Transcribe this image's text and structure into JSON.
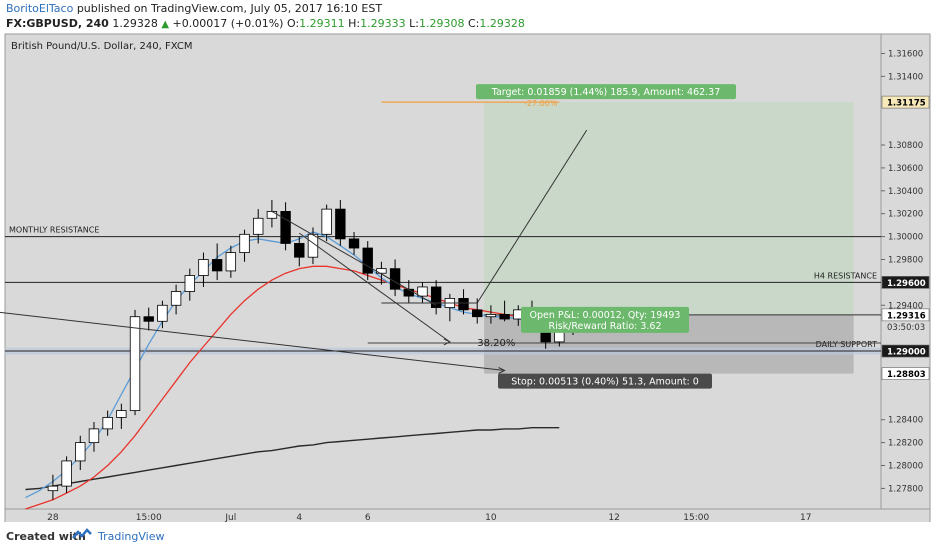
{
  "header": {
    "author": "BoritoElTaco",
    "published": "published on TradingView.com, July 05, 2017 16:10 EST",
    "symbol": "FX:GBPUSD, 240",
    "last": "1.29328",
    "change": "+0.00017 (+0.01%)",
    "o_label": "O:",
    "o_value": "1.29311",
    "h_label": "H:",
    "h_value": "1.29333",
    "l_label": "L:",
    "l_value": "1.29308",
    "c_label": "C:",
    "c_value": "1.29328"
  },
  "footer": {
    "created_with": "Created with",
    "brand": "TradingView"
  },
  "colors": {
    "background": "#d9d9d9",
    "candle_up": "#ffffff",
    "candle_down": "#000000",
    "ma_fast": "#5b9bd5",
    "ma_mid": "#e8342c",
    "ma_slow": "#2a2a2a",
    "target_zone": "#c9d8c9",
    "stop_zone": "#b8b8b8",
    "target_label_bg": "#6cb86c",
    "stop_label_bg": "#4a4a4a",
    "target_line": "#f0a040",
    "support_band": "#bcc8dc"
  },
  "chart_data": {
    "type": "candlestick",
    "title": "British Pound/U.S. Dollar, 240, FXCM",
    "ylim": [
      1.2762,
      1.3177
    ],
    "y_ticks": [
      "1.31600",
      "1.31400",
      "1.31175",
      "1.30800",
      "1.30600",
      "1.30400",
      "1.30200",
      "1.30000",
      "1.29800",
      "1.29600",
      "1.29400",
      "1.29316",
      "1.29000",
      "1.28803",
      "1.28400",
      "1.28200",
      "1.28000",
      "1.27800"
    ],
    "y_tick_values": [
      1.316,
      1.314,
      1.31175,
      1.308,
      1.306,
      1.304,
      1.302,
      1.3,
      1.298,
      1.296,
      1.294,
      1.29316,
      1.29,
      1.28803,
      1.284,
      1.282,
      1.28,
      1.278
    ],
    "price_flags": [
      {
        "value": 1.31175,
        "label": "1.31175",
        "style": "highlight"
      },
      {
        "value": 1.296,
        "label": "1.29600",
        "style": "dark"
      },
      {
        "value": 1.29316,
        "label": "1.29316",
        "style": "white"
      },
      {
        "value": 1.29,
        "label": "1.29000",
        "style": "dark"
      },
      {
        "value": 1.28803,
        "label": "1.28803",
        "style": "white"
      }
    ],
    "countdown": "03:50:03",
    "x_labels": [
      "28",
      "15:00",
      "Jul",
      "4",
      "6",
      "10",
      "12",
      "15:00",
      "17"
    ],
    "x_label_bars": [
      3,
      10,
      16,
      21,
      26,
      35,
      44,
      50,
      58
    ],
    "bar_count": 64,
    "candles": [
      [
        1.2778,
        1.2792,
        1.277,
        1.2782
      ],
      [
        1.2782,
        1.2808,
        1.2776,
        1.2804
      ],
      [
        1.2804,
        1.2826,
        1.2796,
        1.282
      ],
      [
        1.282,
        1.2838,
        1.2812,
        1.2832
      ],
      [
        1.2832,
        1.2848,
        1.2826,
        1.2842
      ],
      [
        1.2842,
        1.2854,
        1.2832,
        1.2848
      ],
      [
        1.2848,
        1.2936,
        1.2844,
        1.293
      ],
      [
        1.293,
        1.2938,
        1.2918,
        1.2926
      ],
      [
        1.2926,
        1.2944,
        1.292,
        1.294
      ],
      [
        1.294,
        1.2958,
        1.2932,
        1.2952
      ],
      [
        1.2952,
        1.2972,
        1.2944,
        1.2966
      ],
      [
        1.2966,
        1.2986,
        1.2956,
        1.298
      ],
      [
        1.298,
        1.2994,
        1.2962,
        1.297
      ],
      [
        1.297,
        1.2992,
        1.2964,
        1.2986
      ],
      [
        1.2986,
        1.3006,
        1.2978,
        1.3002
      ],
      [
        1.3002,
        1.3024,
        1.2994,
        1.3016
      ],
      [
        1.3016,
        1.3032,
        1.3008,
        1.3022
      ],
      [
        1.3022,
        1.303,
        1.2988,
        1.2994
      ],
      [
        1.2994,
        1.3,
        1.2974,
        1.2982
      ],
      [
        1.2982,
        1.3008,
        1.2976,
        1.3002
      ],
      [
        1.3002,
        1.3028,
        1.2996,
        1.3024
      ],
      [
        1.3024,
        1.3032,
        1.2992,
        1.2998
      ],
      [
        1.2998,
        1.3004,
        1.2984,
        1.299
      ],
      [
        1.299,
        1.2996,
        1.2962,
        1.2968
      ],
      [
        1.2968,
        1.2978,
        1.2958,
        1.2972
      ],
      [
        1.2972,
        1.298,
        1.2948,
        1.2954
      ],
      [
        1.2954,
        1.2962,
        1.2942,
        1.2948
      ],
      [
        1.2948,
        1.296,
        1.2942,
        1.2956
      ],
      [
        1.2956,
        1.2962,
        1.2932,
        1.2938
      ],
      [
        1.2938,
        1.295,
        1.2926,
        1.2946
      ],
      [
        1.2946,
        1.2954,
        1.2932,
        1.2936
      ],
      [
        1.2936,
        1.2946,
        1.2924,
        1.293
      ],
      [
        1.293,
        1.294,
        1.2924,
        1.2932
      ],
      [
        1.2932,
        1.2944,
        1.2926,
        1.2928
      ],
      [
        1.2928,
        1.294,
        1.2922,
        1.2936
      ],
      [
        1.2936,
        1.2944,
        1.2928,
        1.2932
      ],
      [
        1.2932,
        1.2938,
        1.2902,
        1.2908
      ],
      [
        1.2908,
        1.2926,
        1.2904,
        1.2922
      ],
      [
        1.2922,
        1.2934,
        1.2914,
        1.2926
      ],
      [
        1.2926,
        1.2938,
        1.292,
        1.2933
      ]
    ],
    "candle_start_bar": 3,
    "ma_fast": [
      1.2772,
      1.2778,
      1.2786,
      1.2796,
      1.2808,
      1.2822,
      1.284,
      1.2862,
      1.2884,
      1.2906,
      1.2926,
      1.2944,
      1.2958,
      1.297,
      1.2982,
      1.299,
      1.2996,
      1.2998,
      1.2996,
      1.2994,
      1.2998,
      1.3004,
      1.3,
      1.2992,
      1.2984,
      1.2974,
      1.2964,
      1.2956,
      1.295,
      1.2946,
      1.2942,
      1.2938,
      1.2934,
      1.2932,
      1.293,
      1.293,
      1.2928,
      1.2926,
      1.2926,
      1.2928
    ],
    "ma_mid": [
      1.2762,
      1.2766,
      1.277,
      1.2776,
      1.2782,
      1.279,
      1.28,
      1.2812,
      1.2826,
      1.2842,
      1.2858,
      1.2874,
      1.289,
      1.2904,
      1.2918,
      1.2932,
      1.2944,
      1.2954,
      1.2962,
      1.2968,
      1.2972,
      1.2974,
      1.2974,
      1.2972,
      1.297,
      1.2966,
      1.2962,
      1.2958,
      1.2954,
      1.295,
      1.2946,
      1.2942,
      1.2938,
      1.2936,
      1.2934,
      1.2932,
      1.293,
      1.2928,
      1.2928,
      1.2928
    ],
    "ma_slow": [
      1.2779,
      1.278,
      1.2782,
      1.2784,
      1.2786,
      1.2788,
      1.279,
      1.2792,
      1.2794,
      1.2796,
      1.2798,
      1.28,
      1.2802,
      1.2804,
      1.2806,
      1.2808,
      1.281,
      1.2812,
      1.2813,
      1.2815,
      1.2817,
      1.2818,
      1.282,
      1.2821,
      1.2822,
      1.2823,
      1.2824,
      1.2825,
      1.2826,
      1.2827,
      1.2828,
      1.2829,
      1.283,
      1.2831,
      1.2831,
      1.2832,
      1.2832,
      1.2833,
      1.2833,
      1.2833
    ],
    "horizontal_levels": [
      {
        "value": 1.3,
        "label": "MONTHLY RESISTANCE",
        "label_side": "left"
      },
      {
        "value": 1.296,
        "label": "H4 RESISTANCE",
        "label_side": "right"
      },
      {
        "value": 1.29,
        "label": "DAILY SUPPORT",
        "label_side": "right"
      }
    ],
    "fib": {
      "value": 1.2907,
      "label": "38.20%"
    },
    "target_level": {
      "value": 1.31175,
      "label": "-27.00%"
    },
    "position": {
      "entry": 1.29316,
      "target": 1.31175,
      "stop": 1.28803,
      "start_bar": 35,
      "end_bar": 61,
      "target_text": "Target: 0.01859 (1.44%) 185.9, Amount: 462.37",
      "pnl_text": "Open P&L: 0.00012, Qty: 19493",
      "rr_text": "Risk/Reward Ratio: 3.62",
      "stop_text": "Stop: 0.00513 (0.40%) 51.3, Amount: 0"
    },
    "trend_lines": [
      {
        "from": [
          -1,
          1.2934
        ],
        "to": [
          36,
          1.2883
        ]
      },
      {
        "from": [
          19,
          1.3022
        ],
        "to": [
          31,
          1.294
        ]
      },
      {
        "from": [
          21,
          1.3003
        ],
        "to": [
          32,
          1.2908
        ]
      },
      {
        "from": [
          27,
          1.2942
        ],
        "to": [
          34,
          1.2942
        ]
      },
      {
        "from": [
          34,
          1.2942
        ],
        "to": [
          42,
          1.3093
        ]
      }
    ],
    "grid": false
  }
}
